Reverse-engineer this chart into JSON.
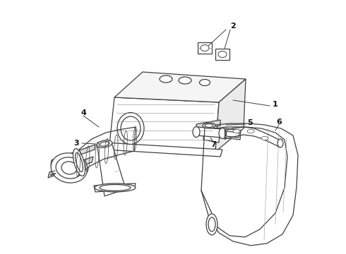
{
  "bg_color": "#ffffff",
  "line_color": "#404040",
  "figsize": [
    4.9,
    3.6
  ],
  "dpi": 100,
  "lw": 0.9
}
